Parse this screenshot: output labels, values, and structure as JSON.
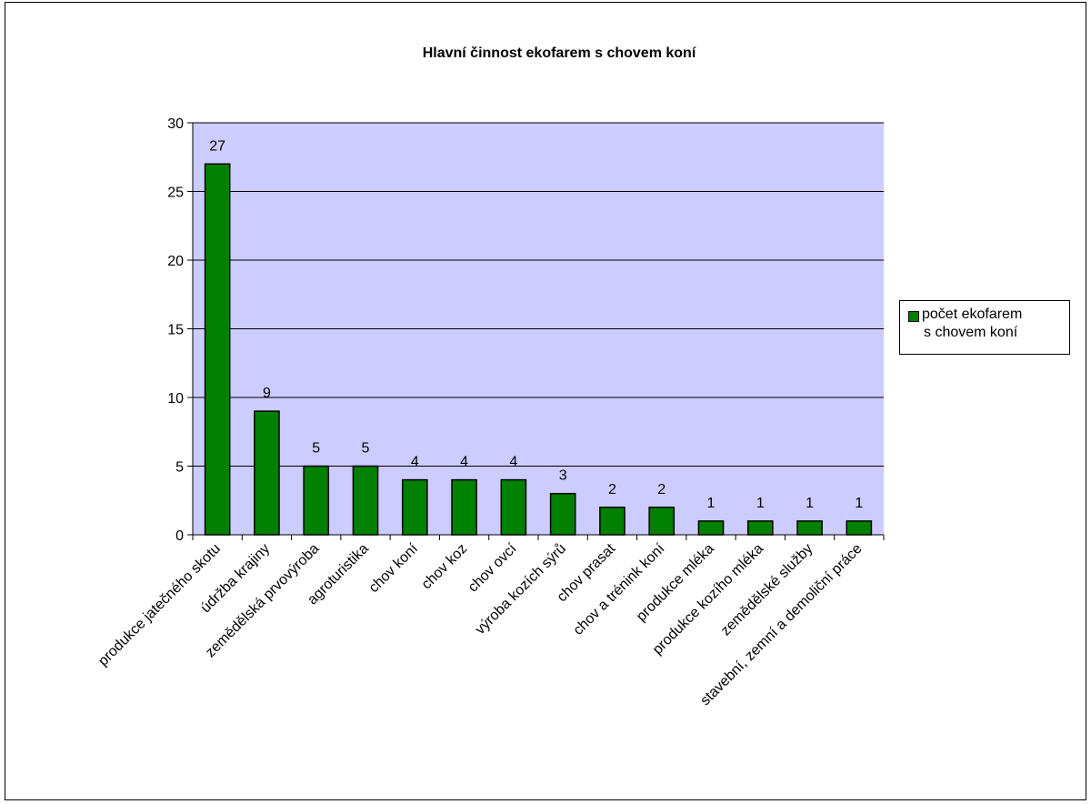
{
  "chart_data": {
    "type": "bar",
    "title": "Hlavní činnost ekofarem s chovem koní",
    "xlabel": "",
    "ylabel": "",
    "ylim": [
      0,
      30
    ],
    "yticks": [
      0,
      5,
      10,
      15,
      20,
      25,
      30
    ],
    "grid": true,
    "legend_position": "right",
    "colors": {
      "bar": "#008000",
      "plot_bg": "#ccccff"
    },
    "categories": [
      "produkce jatečného skotu",
      "údržba krajiny",
      "zemědělská prvovýroba",
      "agroturistika",
      "chov koní",
      "chov koz",
      "chov ovcí",
      "výroba kozích sýrů",
      "chov prasat",
      "chov a trénink koní",
      "produkce mléka",
      "produkce kozího mléka",
      "zemědělské služby",
      "stavební, zemní a demoliční práce"
    ],
    "series": [
      {
        "name": "počet ekofarem s chovem koní",
        "values": [
          27,
          9,
          5,
          5,
          4,
          4,
          4,
          3,
          2,
          2,
          1,
          1,
          1,
          1
        ]
      }
    ]
  },
  "legend": {
    "line1": "počet ekofarem",
    "line2": "s chovem koní"
  }
}
